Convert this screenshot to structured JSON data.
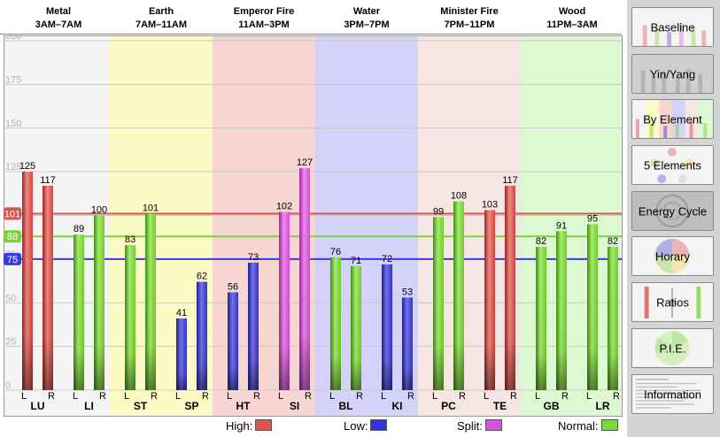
{
  "chart_data": {
    "type": "bar",
    "ylim": [
      0,
      200
    ],
    "yticks": [
      0,
      25,
      50,
      75,
      100,
      125,
      150,
      175,
      200
    ],
    "reference_lines": [
      {
        "value": 101,
        "label": "101",
        "color": "#d9534f"
      },
      {
        "value": 88,
        "label": "88",
        "color": "#7fd13b"
      },
      {
        "value": 75,
        "label": "75",
        "color": "#3a3ae0"
      }
    ],
    "zones": [
      {
        "name": "Metal",
        "time": "3AM–7AM",
        "color": "#f4f4f4"
      },
      {
        "name": "Earth",
        "time": "7AM–11AM",
        "color": "#fdfbc4"
      },
      {
        "name": "Emperor Fire",
        "time": "11AM–3PM",
        "color": "#f7d5d0"
      },
      {
        "name": "Water",
        "time": "3PM–7PM",
        "color": "#d3d3fa"
      },
      {
        "name": "Minister Fire",
        "time": "7PM–11PM",
        "color": "#f6e6e3"
      },
      {
        "name": "Wood",
        "time": "11PM–3AM",
        "color": "#dcf9d2"
      }
    ],
    "meridians": [
      {
        "label": "LU",
        "left": 125,
        "right": 117,
        "status": "high"
      },
      {
        "label": "LI",
        "left": 89,
        "right": 100,
        "status": "normal"
      },
      {
        "label": "ST",
        "left": 83,
        "right": 101,
        "status": "normal"
      },
      {
        "label": "SP",
        "left": 41,
        "right": 62,
        "status": "low"
      },
      {
        "label": "HT",
        "left": 56,
        "right": 73,
        "status": "low"
      },
      {
        "label": "SI",
        "left": 102,
        "right": 127,
        "status": "split"
      },
      {
        "label": "BL",
        "left": 76,
        "right": 71,
        "status": "normal"
      },
      {
        "label": "KI",
        "left": 72,
        "right": 53,
        "status": "low"
      },
      {
        "label": "PC",
        "left": 99,
        "right": 108,
        "status": "normal"
      },
      {
        "label": "TE",
        "left": 103,
        "right": 117,
        "status": "high"
      },
      {
        "label": "GB",
        "left": 82,
        "right": 91,
        "status": "normal"
      },
      {
        "label": "LR",
        "left": 95,
        "right": 82,
        "status": "normal"
      }
    ],
    "side_labels": {
      "left": "L",
      "right": "R"
    },
    "status_colors": {
      "high": {
        "base": "#d8423b",
        "light": "#f08a84",
        "dark": "#9e2420"
      },
      "low": {
        "base": "#3333cc",
        "light": "#7373ee",
        "dark": "#1f1f8a"
      },
      "normal": {
        "base": "#6fcf2a",
        "light": "#a8ec6e",
        "dark": "#3f8f12"
      },
      "split": {
        "base": "#d94ad9",
        "light": "#f08af0",
        "dark": "#9a2a9a"
      }
    }
  },
  "legend": [
    {
      "key": "high",
      "label": "High:",
      "color": "#e8504a"
    },
    {
      "key": "low",
      "label": "Low:",
      "color": "#3333dd"
    },
    {
      "key": "split",
      "label": "Split:",
      "color": "#e050e0"
    },
    {
      "key": "normal",
      "label": "Normal:",
      "color": "#77dd33"
    }
  ],
  "sidebar": {
    "buttons": [
      {
        "label": "Baseline",
        "icon": "baseline-thumbnail",
        "active": false
      },
      {
        "label": "Yin/Yang",
        "icon": "yin-yang-thumbnail",
        "active": true
      },
      {
        "label": "By Element",
        "icon": "by-element-thumbnail",
        "active": false
      },
      {
        "label": "5 Elements",
        "icon": "five-elements-thumbnail",
        "active": false
      },
      {
        "label": "Energy Cycle",
        "icon": "energy-cycle-thumbnail",
        "active": true
      },
      {
        "label": "Horary",
        "icon": "horary-thumbnail",
        "active": false
      },
      {
        "label": "Ratios",
        "icon": "ratios-thumbnail",
        "active": false
      },
      {
        "label": "P.I.E.",
        "icon": "pie-thumbnail",
        "active": false
      },
      {
        "label": "Information",
        "icon": "information-thumbnail",
        "active": false
      }
    ]
  }
}
